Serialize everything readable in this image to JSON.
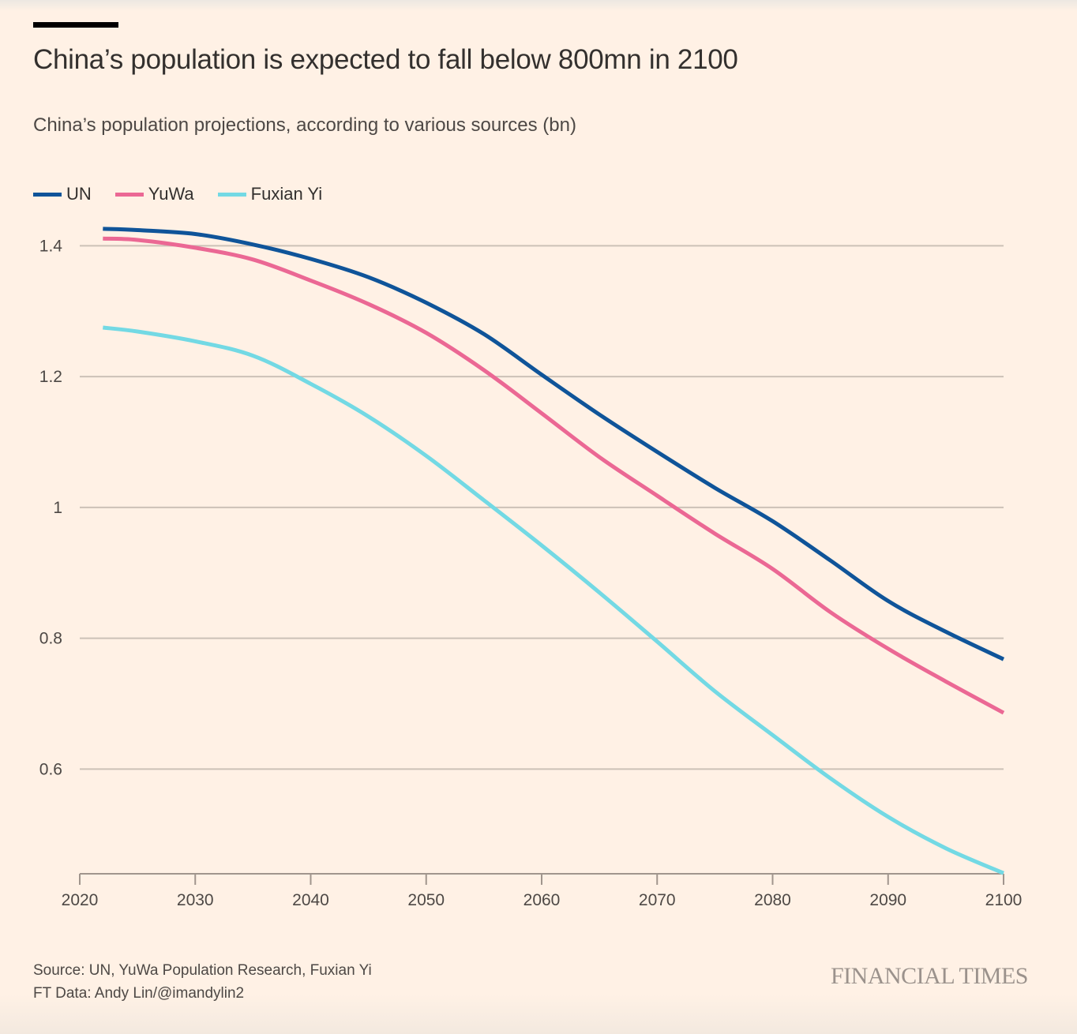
{
  "header": {
    "title": "China’s population is expected to fall below 800mn in 2100",
    "subtitle": "China’s population projections, according to various sources (bn)"
  },
  "footer": {
    "source": "Source: UN, YuWa Population Research, Fuxian Yi",
    "credit": "FT Data: Andy Lin/@imandylin2",
    "brand": "FINANCIAL TIMES"
  },
  "chart_data": {
    "type": "line",
    "title": "China’s population is expected to fall below 800mn in 2100",
    "subtitle": "China’s population projections, according to various sources (bn)",
    "xlabel": "",
    "ylabel": "",
    "xlim": [
      2020,
      2100
    ],
    "ylim": [
      0.44,
      1.45
    ],
    "x_ticks": [
      2020,
      2030,
      2040,
      2050,
      2060,
      2070,
      2080,
      2090,
      2100
    ],
    "x_tick_labels": [
      "2020",
      "2030",
      "2040",
      "2050",
      "2060",
      "2070",
      "2080",
      "2090",
      "2100"
    ],
    "y_ticks": [
      0.6,
      0.8,
      1.0,
      1.2,
      1.4
    ],
    "y_tick_labels": [
      "0.6",
      "0.8",
      "1",
      "1.2",
      "1.4"
    ],
    "grid": "horizontal",
    "legend_position": "top-left",
    "x": [
      2022,
      2025,
      2030,
      2035,
      2040,
      2045,
      2050,
      2055,
      2060,
      2065,
      2070,
      2075,
      2080,
      2085,
      2090,
      2095,
      2100
    ],
    "series": [
      {
        "name": "UN",
        "color": "#0f5499",
        "values": [
          1.426,
          1.424,
          1.418,
          1.402,
          1.38,
          1.352,
          1.313,
          1.265,
          1.203,
          1.142,
          1.085,
          1.03,
          0.979,
          0.919,
          0.857,
          0.81,
          0.768
        ]
      },
      {
        "name": "YuWa",
        "color": "#eb6894",
        "values": [
          1.411,
          1.409,
          1.397,
          1.379,
          1.347,
          1.311,
          1.267,
          1.21,
          1.144,
          1.077,
          1.018,
          0.96,
          0.906,
          0.84,
          0.784,
          0.734,
          0.686
        ]
      },
      {
        "name": "Fuxian Yi",
        "color": "#73d9e4",
        "values": [
          1.275,
          1.269,
          1.254,
          1.232,
          1.189,
          1.139,
          1.079,
          1.011,
          0.942,
          0.87,
          0.795,
          0.719,
          0.652,
          0.586,
          0.527,
          0.479,
          0.441
        ]
      }
    ]
  },
  "colors": {
    "background": "#fff1e5",
    "gridline": "#ccc1b7",
    "axis": "#a0958d",
    "text": "#33302e"
  }
}
